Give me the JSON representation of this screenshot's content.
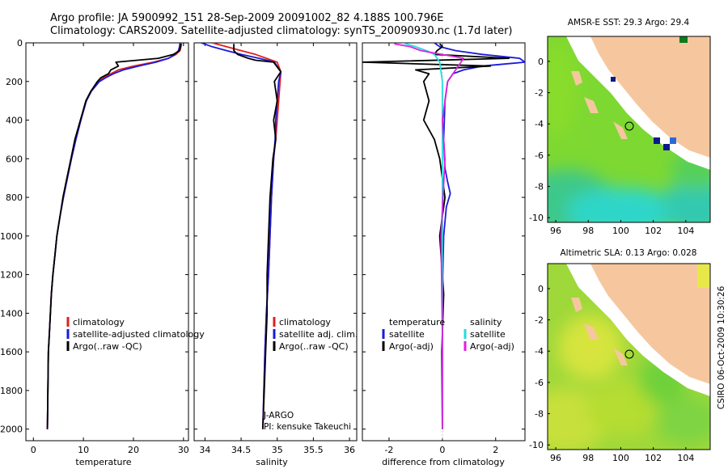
{
  "title": {
    "line1": "Argo profile: JA 5900992_151 28-Sep-2009 20091002_82 4.188S 100.796E",
    "line2": "Climatology: CARS2009. Satellite-adjusted climatology: synTS_20090930.nc (1.7d later)"
  },
  "footer_vertical": "CSIRO 06-Oct-2009 10:30:26",
  "colors": {
    "climatology": "#e0201c",
    "satellite": "#1a1adc",
    "argo": "#000000",
    "satellite_salinity": "#22dddd",
    "argo_salinity": "#dd22dd",
    "land": "#f6c79e"
  },
  "chart_data": [
    {
      "type": "line",
      "xlabel": "temperature",
      "ylabel": "",
      "xlim": [
        -1.5,
        31
      ],
      "ylim": [
        2060,
        0
      ],
      "xticks": [
        "0",
        "10",
        "20",
        "30"
      ],
      "yticks": [
        "0",
        "200",
        "400",
        "600",
        "800",
        "1000",
        "1200",
        "1400",
        "1600",
        "1800",
        "2000"
      ],
      "legend": [
        "climatology",
        "satellite-adjusted climatology",
        "Argo(..raw -QC)"
      ],
      "series": [
        {
          "name": "climatology",
          "x": [
            29.6,
            29.5,
            29.3,
            28.5,
            27.0,
            24.0,
            20.0,
            17.0,
            15.5,
            14.0,
            13.0,
            11.5,
            10.5,
            9.5,
            8.5,
            7.6,
            6.8,
            6.0,
            5.3,
            4.7,
            4.3,
            3.9,
            3.6,
            3.4,
            3.2,
            3.0,
            2.9,
            2.8
          ],
          "y": [
            0,
            20,
            40,
            60,
            80,
            100,
            120,
            140,
            160,
            180,
            200,
            250,
            300,
            400,
            500,
            600,
            700,
            800,
            900,
            1000,
            1100,
            1200,
            1300,
            1400,
            1500,
            1600,
            1800,
            2000
          ]
        },
        {
          "name": "satellite-adjusted climatology",
          "x": [
            29.3,
            29.2,
            29.0,
            28.3,
            27.0,
            24.5,
            21.0,
            18.0,
            16.0,
            14.5,
            13.2,
            11.6,
            10.6,
            9.5,
            8.5,
            7.6,
            6.8,
            6.0,
            5.3,
            4.7,
            4.3,
            3.9,
            3.6,
            3.4,
            3.2,
            3.0,
            2.9,
            2.8
          ],
          "y": [
            0,
            20,
            40,
            60,
            80,
            100,
            120,
            140,
            160,
            180,
            200,
            250,
            300,
            400,
            500,
            600,
            700,
            800,
            900,
            1000,
            1100,
            1200,
            1300,
            1400,
            1500,
            1600,
            1800,
            2000
          ]
        },
        {
          "name": "Argo(..raw -QC)",
          "x": [
            29.5,
            29.4,
            29.2,
            28.0,
            25.0,
            16.5,
            17.0,
            15.5,
            15.0,
            13.5,
            12.8,
            11.5,
            10.5,
            9.4,
            8.3,
            7.5,
            6.7,
            5.9,
            5.3,
            4.7,
            4.3,
            3.9,
            3.6,
            3.4,
            3.2,
            3.0,
            2.9,
            2.8
          ],
          "y": [
            5,
            20,
            40,
            60,
            80,
            100,
            120,
            140,
            160,
            180,
            200,
            250,
            300,
            400,
            500,
            600,
            700,
            800,
            900,
            1000,
            1100,
            1200,
            1300,
            1400,
            1500,
            1600,
            1800,
            2000
          ]
        }
      ]
    },
    {
      "type": "line",
      "xlabel": "salinity",
      "xlim": [
        33.85,
        36.1
      ],
      "ylim": [
        2060,
        0
      ],
      "xticks": [
        "34",
        "34.5",
        "35",
        "35.5",
        "36"
      ],
      "legend": [
        "climatology",
        "satellite adj. clim.",
        "Argo(..raw -QC)"
      ],
      "annotations": [
        "J-ARGO",
        "PI: kensuke Takeuchi"
      ],
      "series": [
        {
          "name": "climatology",
          "x": [
            34.1,
            34.3,
            34.5,
            34.7,
            34.85,
            35.0,
            35.05,
            35.04,
            35.02,
            35.0,
            34.98,
            34.95,
            34.92,
            34.9,
            34.88,
            34.85,
            34.83,
            34.8
          ],
          "y": [
            0,
            20,
            40,
            60,
            80,
            100,
            150,
            200,
            300,
            400,
            500,
            600,
            800,
            1000,
            1200,
            1400,
            1600,
            2000
          ]
        },
        {
          "name": "satellite adj. clim.",
          "x": [
            33.95,
            34.1,
            34.3,
            34.5,
            34.75,
            34.96,
            35.05,
            35.02,
            35.0,
            34.98,
            34.97,
            34.95,
            34.92,
            34.9,
            34.88,
            34.85,
            34.83,
            34.8
          ],
          "y": [
            0,
            20,
            40,
            60,
            80,
            100,
            150,
            200,
            300,
            400,
            500,
            600,
            800,
            1000,
            1200,
            1400,
            1600,
            2000
          ]
        },
        {
          "name": "Argo(..raw -QC)",
          "x": [
            34.4,
            34.4,
            34.45,
            34.6,
            34.7,
            34.95,
            35.05,
            34.96,
            35.0,
            34.95,
            34.98,
            34.94,
            34.9,
            34.88,
            34.86,
            34.86,
            34.84,
            34.82,
            34.8
          ],
          "y": [
            5,
            40,
            60,
            80,
            90,
            100,
            150,
            200,
            300,
            400,
            500,
            600,
            800,
            1000,
            1200,
            1400,
            1600,
            1800,
            2000
          ]
        }
      ]
    },
    {
      "type": "line",
      "xlabel": "difference from climatology",
      "xlim": [
        -3.0,
        3.1
      ],
      "ylim": [
        2060,
        0
      ],
      "xticks": [
        "-2",
        "0",
        "2"
      ],
      "legend": [
        "temperature",
        "satellite",
        "Argo(-adj)",
        "salinity",
        "satellite",
        "Argo(-adj)"
      ],
      "series": [
        {
          "name": "temperature satellite",
          "x": [
            -0.3,
            -0.1,
            0.5,
            1.5,
            2.9,
            3.1,
            1.5,
            0.8,
            0.4,
            0.2,
            0.1,
            0.05,
            0.1,
            0.2,
            0.3,
            0.15,
            0.05,
            0.0,
            0.0,
            0.0
          ],
          "y": [
            0,
            20,
            40,
            60,
            80,
            100,
            120,
            140,
            160,
            200,
            300,
            500,
            650,
            720,
            780,
            850,
            1000,
            1300,
            1600,
            2000
          ]
        },
        {
          "name": "temperature Argo(-adj)",
          "x": [
            -0.1,
            0.0,
            -0.2,
            -0.3,
            2.5,
            -3.0,
            1.8,
            -1.0,
            -0.5,
            -0.7,
            -0.5,
            -0.7,
            -0.3,
            -0.1,
            0.1,
            -0.1,
            0.05,
            -0.02,
            0.0
          ],
          "y": [
            5,
            20,
            40,
            60,
            80,
            100,
            120,
            140,
            160,
            200,
            300,
            400,
            500,
            600,
            800,
            1000,
            1300,
            1600,
            2000
          ]
        },
        {
          "name": "salinity satellite",
          "x": [
            -1.5,
            -1.0,
            -0.6,
            -0.3,
            -0.1,
            0.0,
            0.0,
            0.0,
            0.0
          ],
          "y": [
            0,
            20,
            40,
            60,
            100,
            200,
            500,
            1000,
            2000
          ]
        },
        {
          "name": "salinity Argo(-adj)",
          "x": [
            -1.8,
            -1.2,
            -0.8,
            0.8,
            0.6,
            0.4,
            0.2,
            0.0,
            0.1,
            -0.05,
            0.0,
            0.0
          ],
          "y": [
            5,
            20,
            40,
            80,
            120,
            160,
            200,
            400,
            600,
            1000,
            1500,
            2000
          ]
        }
      ]
    },
    {
      "type": "heatmap",
      "title": "AMSR-E SST: 29.3 Argo: 29.4",
      "xlim": [
        95.5,
        105.5
      ],
      "ylim": [
        -10.3,
        1.6
      ],
      "xticks": [
        "96",
        "98",
        "100",
        "102",
        "104"
      ],
      "yticks": [
        "0",
        "-2",
        "-4",
        "-6",
        "-8",
        "-10"
      ]
    },
    {
      "type": "heatmap",
      "title": "Altimetric SLA: 0.13 Argo: 0.028",
      "xlim": [
        95.5,
        105.5
      ],
      "ylim": [
        -10.3,
        1.6
      ],
      "xticks": [
        "96",
        "98",
        "100",
        "102",
        "104"
      ],
      "yticks": [
        "0",
        "-2",
        "-4",
        "-6",
        "-8",
        "-10"
      ]
    }
  ]
}
